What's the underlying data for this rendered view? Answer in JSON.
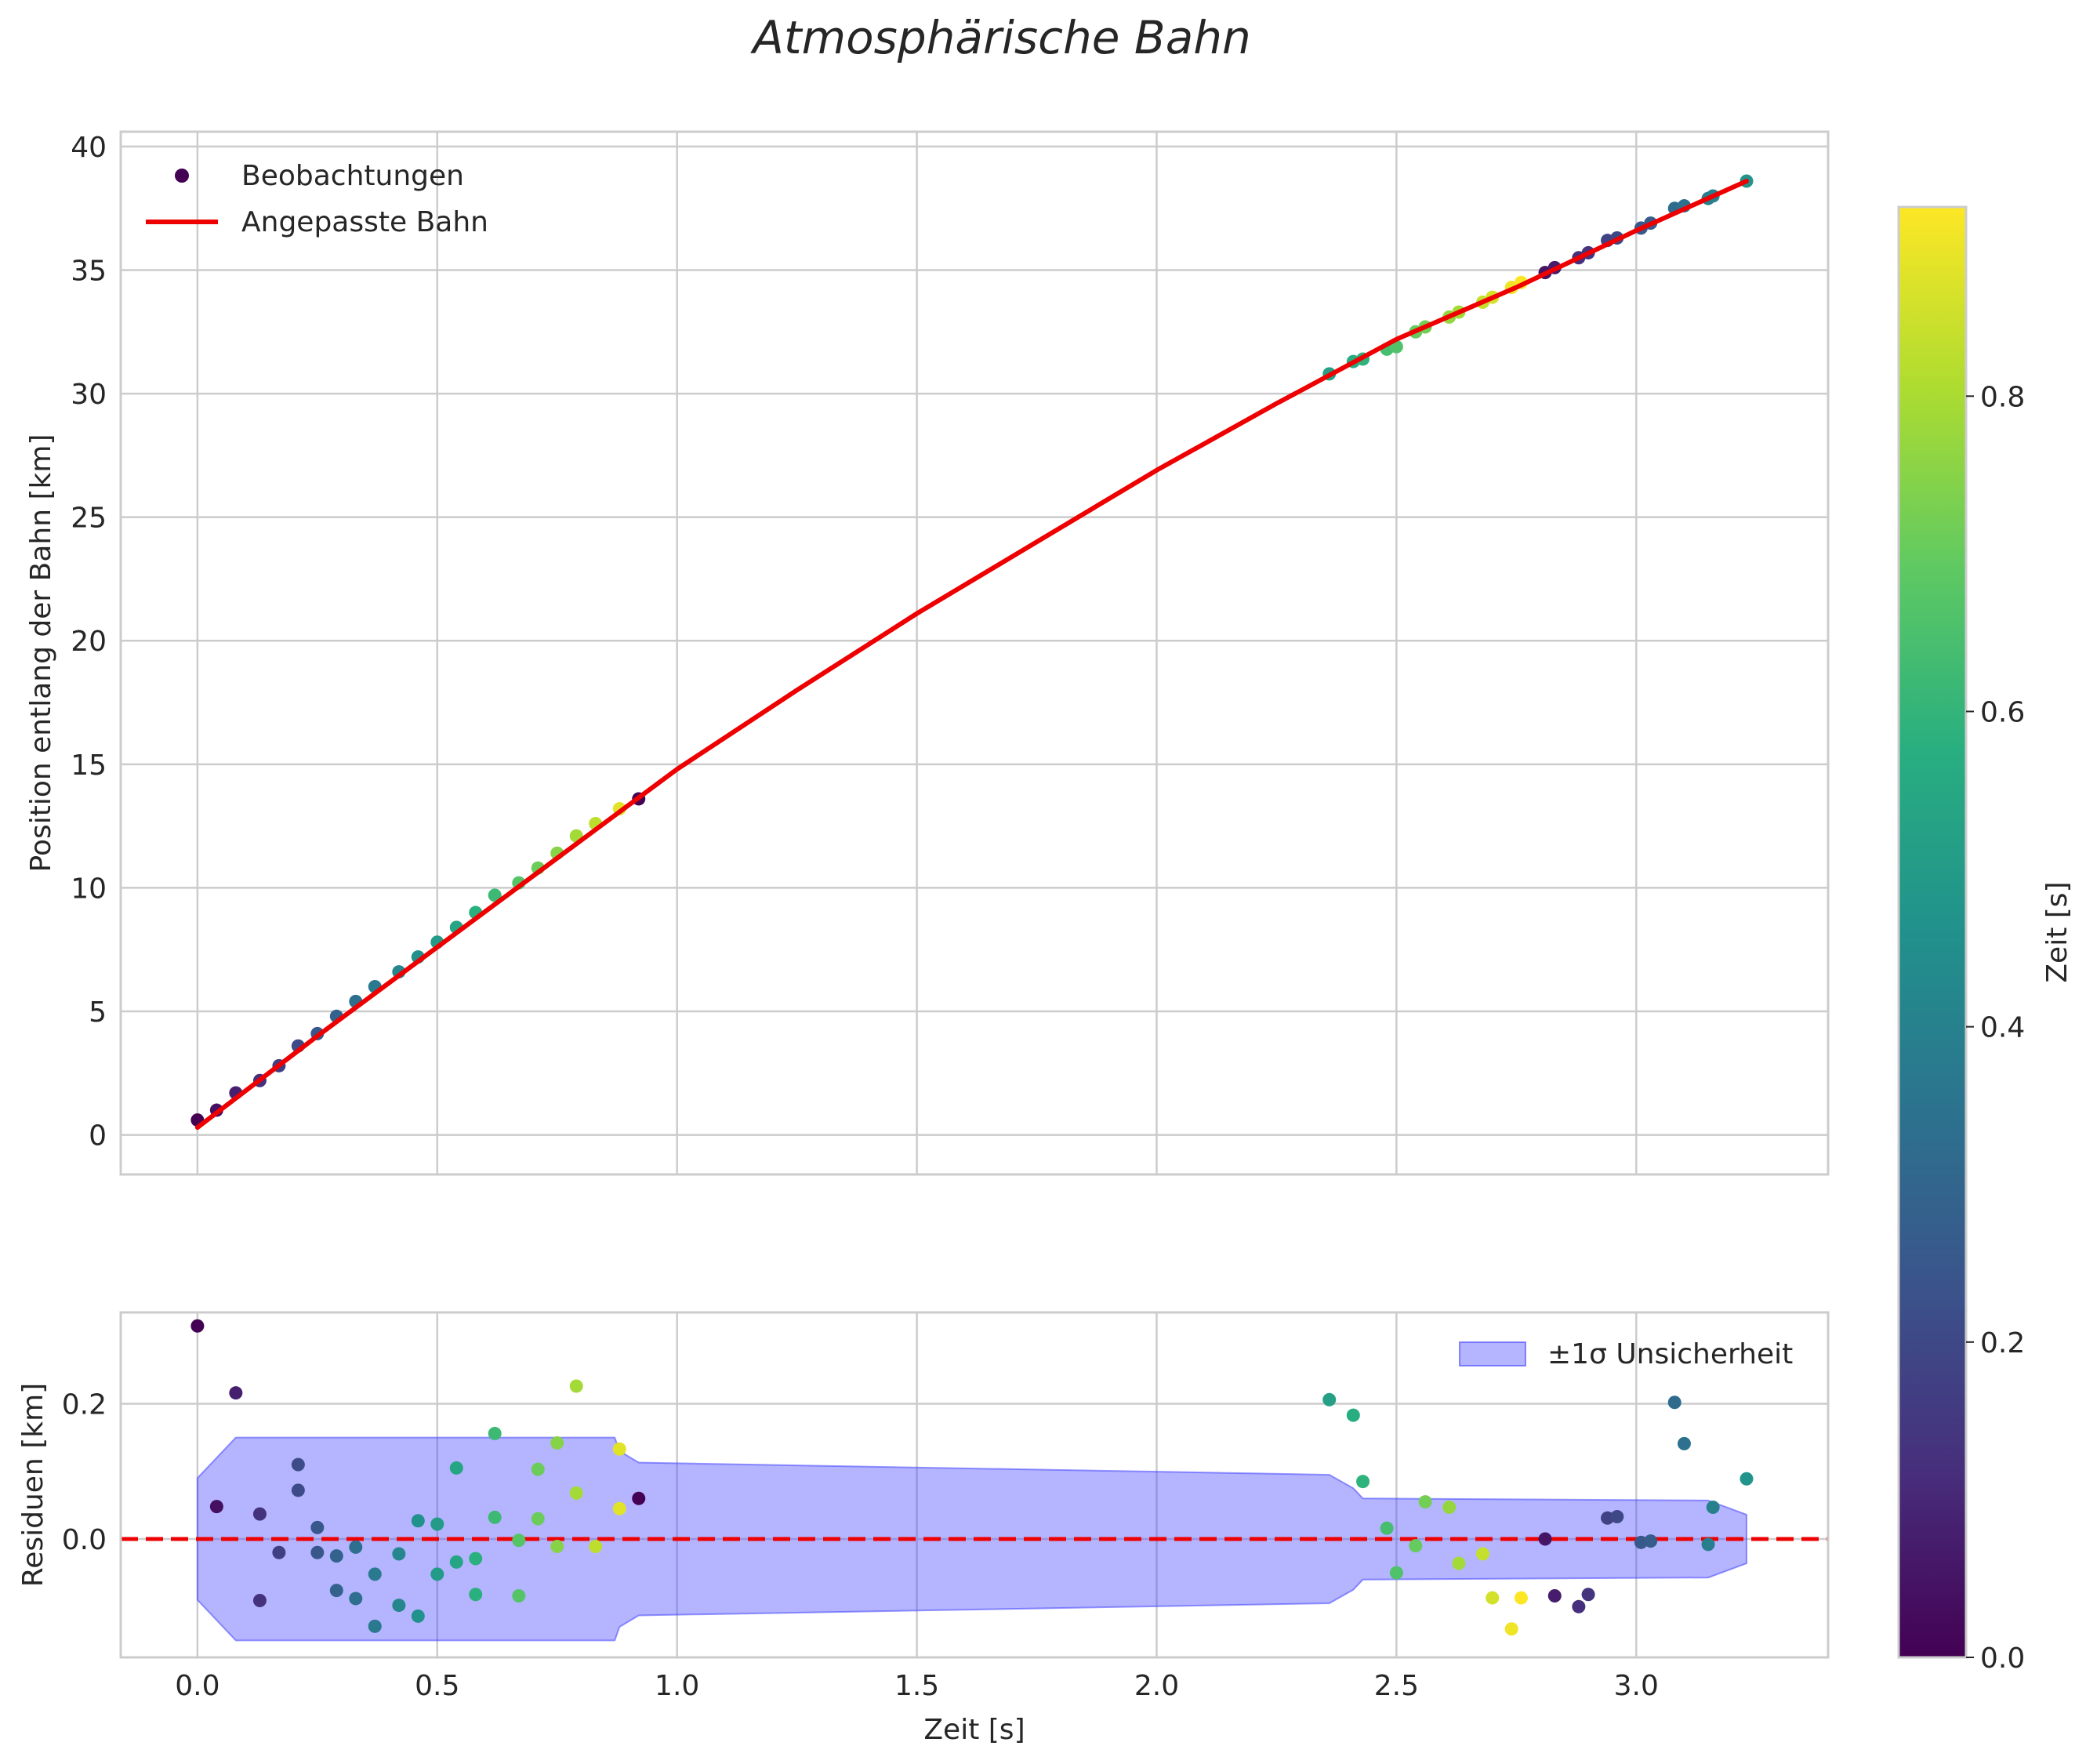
{
  "title": "Atmosphärische Bahn",
  "chart_data": [
    {
      "type": "scatter",
      "panel": "top",
      "ylabel": "Position entlang der Bahn [km]",
      "xlabel": "",
      "xlim": [
        -0.16,
        3.4
      ],
      "ylim": [
        -1.6,
        40.6
      ],
      "xticks": [
        0.0,
        0.5,
        1.0,
        1.5,
        2.0,
        2.5,
        3.0
      ],
      "yticks": [
        0,
        5,
        10,
        15,
        20,
        25,
        30,
        35,
        40
      ],
      "ytick_labels": [
        "0",
        "5",
        "10",
        "15",
        "20",
        "25",
        "30",
        "35",
        "40"
      ],
      "grid": true,
      "legend": {
        "position": "upper-left",
        "entries": [
          "Beobachtungen",
          "Angepasste Bahn"
        ]
      },
      "fit_line": {
        "name": "Angepasste Bahn",
        "color": "#ee0000",
        "x": [
          0.0,
          0.25,
          0.5,
          0.75,
          1.0,
          1.25,
          1.5,
          1.75,
          2.0,
          2.25,
          2.5,
          2.75,
          3.0,
          3.23
        ],
        "y": [
          0.3,
          4.0,
          7.6,
          11.2,
          14.8,
          18.0,
          21.1,
          24.0,
          26.9,
          29.6,
          32.2,
          34.3,
          36.6,
          38.6
        ]
      },
      "observations": {
        "name": "Beobachtungen",
        "t": [
          0.0,
          0.04,
          0.08,
          0.13,
          0.17,
          0.21,
          0.25,
          0.29,
          0.33,
          0.37,
          0.42,
          0.46,
          0.5,
          0.54,
          0.58,
          0.62,
          0.67,
          0.71,
          0.75,
          0.79,
          0.83,
          0.88,
          0.92,
          2.36,
          2.41,
          2.43,
          2.48,
          2.5,
          2.54,
          2.56,
          2.61,
          2.63,
          2.68,
          2.7,
          2.74,
          2.76,
          2.81,
          2.83,
          2.88,
          2.9,
          2.94,
          2.96,
          3.01,
          3.03,
          3.08,
          3.1,
          3.15,
          3.16,
          3.23
        ],
        "y": [
          0.6,
          1.0,
          1.7,
          2.2,
          2.8,
          3.6,
          4.1,
          4.8,
          5.4,
          6.0,
          6.6,
          7.2,
          7.8,
          8.4,
          9.0,
          9.7,
          10.2,
          10.8,
          11.4,
          12.1,
          12.6,
          13.2,
          13.6,
          30.8,
          31.3,
          31.4,
          31.8,
          31.9,
          32.5,
          32.7,
          33.1,
          33.3,
          33.7,
          33.9,
          34.3,
          34.5,
          34.9,
          35.1,
          35.5,
          35.7,
          36.2,
          36.3,
          36.7,
          36.9,
          37.5,
          37.6,
          37.9,
          38.0,
          38.6
        ]
      }
    },
    {
      "type": "scatter",
      "panel": "bottom",
      "ylabel": "Residuen [km]",
      "xlabel": "Zeit [s]",
      "xlim": [
        -0.16,
        3.4
      ],
      "ylim": [
        -0.175,
        0.335
      ],
      "xticks": [
        0.0,
        0.5,
        1.0,
        1.5,
        2.0,
        2.5,
        3.0
      ],
      "xtick_labels": [
        "0.0",
        "0.5",
        "1.0",
        "1.5",
        "2.0",
        "2.5",
        "3.0"
      ],
      "yticks": [
        0.0,
        0.2
      ],
      "ytick_labels": [
        "0.0",
        "0.2"
      ],
      "grid": true,
      "reference_line": {
        "y": 0.0,
        "style": "dashed",
        "color": "#ee0000"
      },
      "legend": {
        "position": "upper-right",
        "entries": [
          "±1σ Unsicherheit"
        ]
      },
      "uncertainty_band": {
        "name": "±1σ Unsicherheit",
        "color": "#4444ff",
        "x": [
          0.0,
          0.08,
          0.87,
          0.88,
          0.92,
          2.36,
          2.41,
          2.43,
          3.15,
          3.23
        ],
        "upper": [
          0.09,
          0.15,
          0.15,
          0.13,
          0.113,
          0.095,
          0.075,
          0.06,
          0.057,
          0.036
        ],
        "lower": [
          -0.09,
          -0.15,
          -0.15,
          -0.13,
          -0.113,
          -0.095,
          -0.075,
          -0.06,
          -0.057,
          -0.036
        ]
      },
      "residuals": {
        "t": [
          0.0,
          0.04,
          0.08,
          0.13,
          0.13,
          0.17,
          0.21,
          0.21,
          0.25,
          0.25,
          0.29,
          0.29,
          0.33,
          0.33,
          0.37,
          0.37,
          0.42,
          0.42,
          0.46,
          0.46,
          0.5,
          0.5,
          0.54,
          0.54,
          0.58,
          0.58,
          0.62,
          0.62,
          0.67,
          0.67,
          0.71,
          0.71,
          0.75,
          0.75,
          0.79,
          0.79,
          0.83,
          0.88,
          0.88,
          0.92,
          2.36,
          2.41,
          2.43,
          2.48,
          2.5,
          2.54,
          2.56,
          2.61,
          2.63,
          2.68,
          2.7,
          2.74,
          2.76,
          2.81,
          2.83,
          2.88,
          2.9,
          2.94,
          2.96,
          3.01,
          3.03,
          3.08,
          3.1,
          3.15,
          3.16,
          3.23
        ],
        "r": [
          0.315,
          0.048,
          0.216,
          0.037,
          -0.091,
          -0.02,
          0.11,
          0.072,
          0.017,
          -0.02,
          -0.076,
          -0.025,
          -0.012,
          -0.088,
          -0.052,
          -0.129,
          -0.022,
          -0.098,
          0.027,
          -0.114,
          0.022,
          -0.052,
          0.105,
          -0.034,
          -0.029,
          -0.082,
          0.156,
          0.032,
          -0.002,
          -0.084,
          0.103,
          0.03,
          0.142,
          -0.011,
          0.226,
          0.068,
          -0.011,
          0.133,
          0.045,
          0.06,
          0.206,
          0.183,
          0.085,
          0.016,
          -0.05,
          -0.01,
          0.055,
          0.047,
          -0.036,
          -0.022,
          -0.087,
          -0.133,
          -0.087,
          0.0,
          -0.084,
          -0.1,
          -0.082,
          0.031,
          0.033,
          -0.005,
          -0.003,
          0.202,
          0.141,
          -0.008,
          0.047,
          0.089
        ]
      }
    },
    {
      "type": "colorbar",
      "label": "Zeit [s]",
      "colormap": "viridis",
      "range": [
        0.0,
        0.92
      ],
      "ticks": [
        0.0,
        0.2,
        0.4,
        0.6,
        0.8
      ],
      "tick_labels": [
        "0.0",
        "0.2",
        "0.4",
        "0.6",
        "0.8"
      ]
    }
  ]
}
